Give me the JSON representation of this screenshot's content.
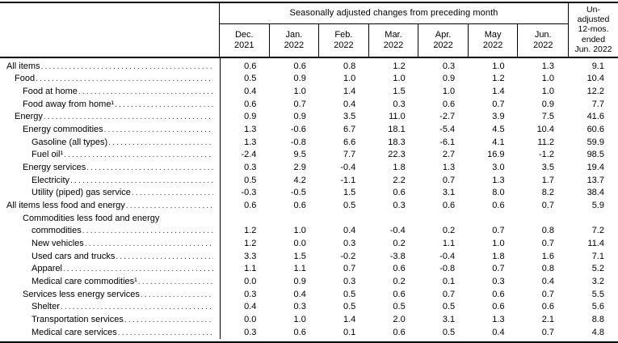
{
  "header": {
    "group_title": "Seasonally adjusted changes from preceding month",
    "months": [
      [
        "Dec.",
        "2021"
      ],
      [
        "Jan.",
        "2022"
      ],
      [
        "Feb.",
        "2022"
      ],
      [
        "Mar.",
        "2022"
      ],
      [
        "Apr.",
        "2022"
      ],
      [
        "May",
        "2022"
      ],
      [
        "Jun.",
        "2022"
      ]
    ],
    "unadjusted_lines": [
      "Un-",
      "adjusted",
      "12-mos.",
      "ended",
      "Jun. 2022"
    ]
  },
  "table": {
    "rows": [
      {
        "label_lines": [
          "All items"
        ],
        "indents": [
          0
        ],
        "values": [
          "0.6",
          "0.6",
          "0.8",
          "1.2",
          "0.3",
          "1.0",
          "1.3",
          "9.1"
        ]
      },
      {
        "label_lines": [
          "Food"
        ],
        "indents": [
          1
        ],
        "values": [
          "0.5",
          "0.9",
          "1.0",
          "1.0",
          "0.9",
          "1.2",
          "1.0",
          "10.4"
        ]
      },
      {
        "label_lines": [
          "Food at home"
        ],
        "indents": [
          2
        ],
        "values": [
          "0.4",
          "1.0",
          "1.4",
          "1.5",
          "1.0",
          "1.4",
          "1.0",
          "12.2"
        ]
      },
      {
        "label_lines": [
          "Food away from home¹"
        ],
        "indents": [
          2
        ],
        "values": [
          "0.6",
          "0.7",
          "0.4",
          "0.3",
          "0.6",
          "0.7",
          "0.9",
          "7.7"
        ]
      },
      {
        "label_lines": [
          "Energy"
        ],
        "indents": [
          1
        ],
        "values": [
          "0.9",
          "0.9",
          "3.5",
          "11.0",
          "-2.7",
          "3.9",
          "7.5",
          "41.6"
        ]
      },
      {
        "label_lines": [
          "Energy commodities"
        ],
        "indents": [
          2
        ],
        "values": [
          "1.3",
          "-0.6",
          "6.7",
          "18.1",
          "-5.4",
          "4.5",
          "10.4",
          "60.6"
        ]
      },
      {
        "label_lines": [
          "Gasoline (all types)"
        ],
        "indents": [
          3
        ],
        "values": [
          "1.3",
          "-0.8",
          "6.6",
          "18.3",
          "-6.1",
          "4.1",
          "11.2",
          "59.9"
        ]
      },
      {
        "label_lines": [
          "Fuel oil¹"
        ],
        "indents": [
          3
        ],
        "values": [
          "-2.4",
          "9.5",
          "7.7",
          "22.3",
          "2.7",
          "16.9",
          "-1.2",
          "98.5"
        ]
      },
      {
        "label_lines": [
          "Energy services"
        ],
        "indents": [
          2
        ],
        "values": [
          "0.3",
          "2.9",
          "-0.4",
          "1.8",
          "1.3",
          "3.0",
          "3.5",
          "19.4"
        ]
      },
      {
        "label_lines": [
          "Electricity"
        ],
        "indents": [
          3
        ],
        "values": [
          "0.5",
          "4.2",
          "-1.1",
          "2.2",
          "0.7",
          "1.3",
          "1.7",
          "13.7"
        ]
      },
      {
        "label_lines": [
          "Utility (piped) gas service"
        ],
        "indents": [
          3
        ],
        "values": [
          "-0.3",
          "-0.5",
          "1.5",
          "0.6",
          "3.1",
          "8.0",
          "8.2",
          "38.4"
        ]
      },
      {
        "label_lines": [
          "All items less food and energy"
        ],
        "indents": [
          0
        ],
        "values": [
          "0.6",
          "0.6",
          "0.5",
          "0.3",
          "0.6",
          "0.6",
          "0.7",
          "5.9"
        ]
      },
      {
        "label_lines": [
          "Commodities less food and energy",
          "commodities"
        ],
        "indents": [
          2,
          3
        ],
        "values": [
          "1.2",
          "1.0",
          "0.4",
          "-0.4",
          "0.2",
          "0.7",
          "0.8",
          "7.2"
        ]
      },
      {
        "label_lines": [
          "New vehicles"
        ],
        "indents": [
          3
        ],
        "values": [
          "1.2",
          "0.0",
          "0.3",
          "0.2",
          "1.1",
          "1.0",
          "0.7",
          "11.4"
        ]
      },
      {
        "label_lines": [
          "Used cars and trucks"
        ],
        "indents": [
          3
        ],
        "values": [
          "3.3",
          "1.5",
          "-0.2",
          "-3.8",
          "-0.4",
          "1.8",
          "1.6",
          "7.1"
        ]
      },
      {
        "label_lines": [
          "Apparel"
        ],
        "indents": [
          3
        ],
        "values": [
          "1.1",
          "1.1",
          "0.7",
          "0.6",
          "-0.8",
          "0.7",
          "0.8",
          "5.2"
        ]
      },
      {
        "label_lines": [
          "Medical care commodities¹"
        ],
        "indents": [
          3
        ],
        "values": [
          "0.0",
          "0.9",
          "0.3",
          "0.2",
          "0.1",
          "0.3",
          "0.4",
          "3.2"
        ]
      },
      {
        "label_lines": [
          "Services less energy services"
        ],
        "indents": [
          2
        ],
        "values": [
          "0.3",
          "0.4",
          "0.5",
          "0.6",
          "0.7",
          "0.6",
          "0.7",
          "5.5"
        ]
      },
      {
        "label_lines": [
          "Shelter"
        ],
        "indents": [
          3
        ],
        "values": [
          "0.4",
          "0.3",
          "0.5",
          "0.5",
          "0.5",
          "0.6",
          "0.6",
          "5.6"
        ]
      },
      {
        "label_lines": [
          "Transportation services"
        ],
        "indents": [
          3
        ],
        "values": [
          "0.0",
          "1.0",
          "1.4",
          "2.0",
          "3.1",
          "1.3",
          "2.1",
          "8.8"
        ]
      },
      {
        "label_lines": [
          "Medical care services"
        ],
        "indents": [
          3
        ],
        "values": [
          "0.3",
          "0.6",
          "0.1",
          "0.6",
          "0.5",
          "0.4",
          "0.7",
          "4.8"
        ]
      }
    ]
  },
  "colors": {
    "border": "#000000",
    "text": "#000000",
    "background": "#ffffff"
  }
}
